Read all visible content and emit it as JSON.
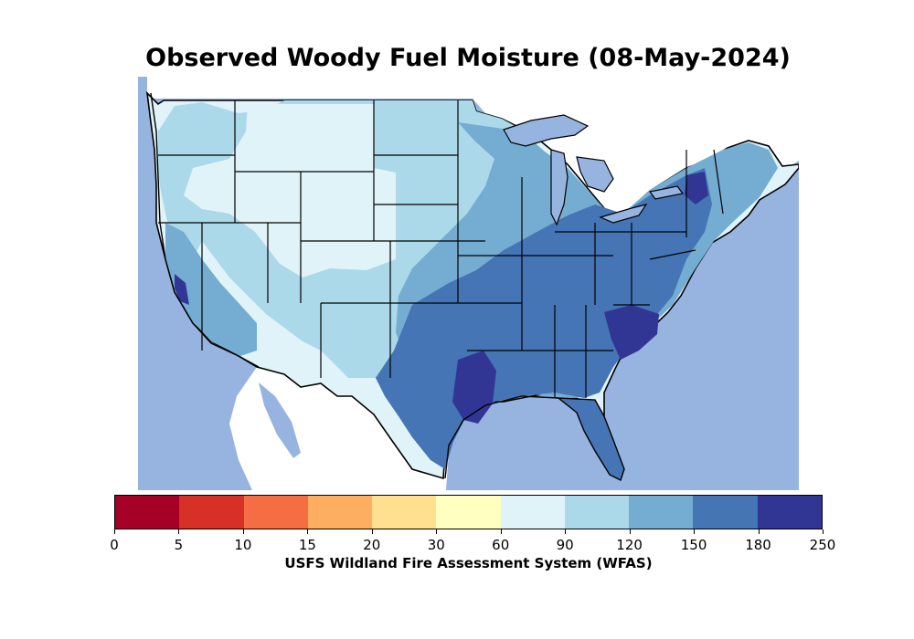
{
  "title": "Observed Woody Fuel Moisture (08-May-2024)",
  "colorbar": {
    "label": "USFS Wildland Fire Assessment System (WFAS)",
    "ticks": [
      "0",
      "5",
      "10",
      "15",
      "20",
      "30",
      "60",
      "90",
      "120",
      "150",
      "180",
      "250"
    ],
    "colors": [
      "#a50026",
      "#d73027",
      "#f46d43",
      "#fdae61",
      "#fee090",
      "#ffffbf",
      "#e0f3f8",
      "#abd9e9",
      "#74add1",
      "#4575b4",
      "#313695"
    ]
  },
  "map_colors": {
    "ocean": "#97b4e0",
    "land_outside": "#ffffff",
    "state_border": "#000000"
  }
}
